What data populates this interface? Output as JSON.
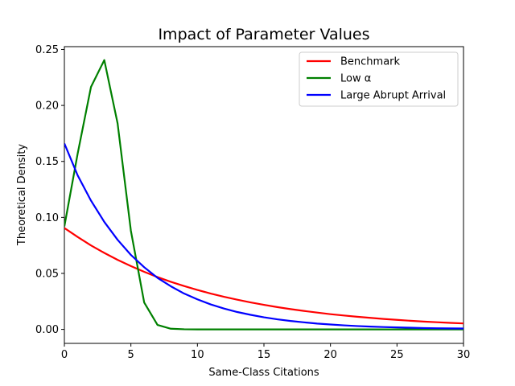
{
  "chart_data": {
    "type": "line",
    "title": "Impact of Parameter Values",
    "xlabel": "Same-Class Citations",
    "ylabel": "Theoretical Density",
    "xlim": [
      0,
      30
    ],
    "ylim": [
      -0.0125,
      0.2525
    ],
    "xticks": [
      0,
      5,
      10,
      15,
      20,
      25,
      30
    ],
    "xtick_labels": [
      "0",
      "5",
      "10",
      "15",
      "20",
      "25",
      "30"
    ],
    "yticks": [
      0.0,
      0.05,
      0.1,
      0.15,
      0.2,
      0.25
    ],
    "ytick_labels": [
      "0.00",
      "0.05",
      "0.10",
      "0.15",
      "0.20",
      "0.25"
    ],
    "grid": false,
    "legend_position": "top-right",
    "x": [
      0,
      1,
      2,
      3,
      4,
      5,
      6,
      7,
      8,
      9,
      10,
      11,
      12,
      13,
      14,
      15,
      16,
      17,
      18,
      19,
      20,
      21,
      22,
      23,
      24,
      25,
      26,
      27,
      28,
      29,
      30
    ],
    "series": [
      {
        "name": "Benchmark",
        "color": "#ff0000",
        "values": [
          0.0905,
          0.0825,
          0.075,
          0.0683,
          0.0621,
          0.0565,
          0.0514,
          0.0467,
          0.0425,
          0.0387,
          0.0352,
          0.032,
          0.0291,
          0.0265,
          0.0241,
          0.0219,
          0.0199,
          0.0181,
          0.0165,
          0.015,
          0.0136,
          0.0124,
          0.0113,
          0.0103,
          0.0093,
          0.0085,
          0.0077,
          0.007,
          0.0064,
          0.0058,
          0.0053
        ]
      },
      {
        "name": "Low α",
        "color": "#008000",
        "values": [
          0.092,
          0.157,
          0.2165,
          0.2405,
          0.184,
          0.088,
          0.024,
          0.004,
          0.0006,
          0.0001,
          0.0,
          0.0,
          0.0,
          0.0,
          0.0,
          0.0,
          0.0,
          0.0,
          0.0,
          0.0,
          0.0,
          0.0,
          0.0,
          0.0,
          0.0,
          0.0,
          0.0,
          0.0,
          0.0,
          0.0,
          0.0
        ]
      },
      {
        "name": "Large Abrupt Arrival",
        "color": "#0000ff",
        "values": [
          0.166,
          0.1375,
          0.115,
          0.096,
          0.08,
          0.0665,
          0.0555,
          0.046,
          0.0385,
          0.032,
          0.0268,
          0.0223,
          0.0186,
          0.0155,
          0.013,
          0.0108,
          0.009,
          0.0075,
          0.0063,
          0.0052,
          0.0044,
          0.0036,
          0.003,
          0.0025,
          0.0021,
          0.0018,
          0.0015,
          0.0012,
          0.001,
          0.0009,
          0.0008
        ]
      }
    ]
  }
}
